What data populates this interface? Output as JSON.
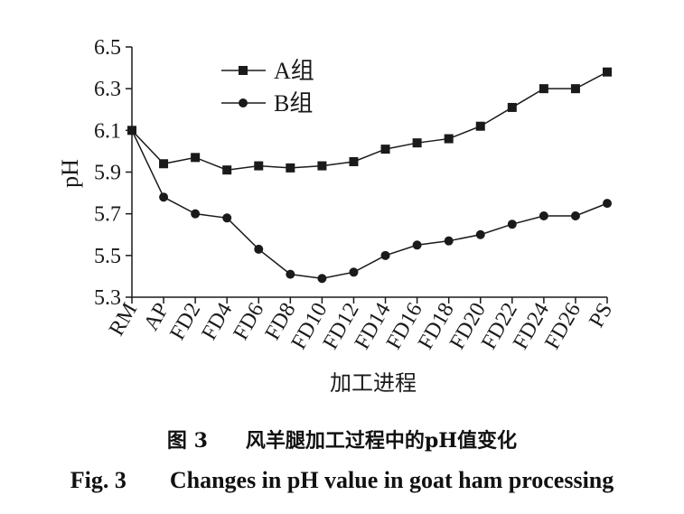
{
  "chart_data": {
    "type": "line",
    "categories": [
      "RM",
      "AP",
      "FD2",
      "FD4",
      "FD6",
      "FD8",
      "FD10",
      "FD12",
      "FD14",
      "FD16",
      "FD18",
      "FD20",
      "FD22",
      "FD24",
      "FD26",
      "PS"
    ],
    "series": [
      {
        "name": "A组",
        "marker": "square",
        "values": [
          6.1,
          5.94,
          5.97,
          5.91,
          5.93,
          5.92,
          5.93,
          5.95,
          6.01,
          6.04,
          6.06,
          6.12,
          6.21,
          6.3,
          6.3,
          6.38
        ]
      },
      {
        "name": "B组",
        "marker": "circle",
        "values": [
          6.1,
          5.78,
          5.7,
          5.68,
          5.53,
          5.41,
          5.39,
          5.42,
          5.5,
          5.55,
          5.57,
          5.6,
          5.65,
          5.69,
          5.69,
          5.75
        ]
      }
    ],
    "xlabel": "加工进程",
    "ylabel": "pH",
    "ylim": [
      5.3,
      6.5
    ],
    "yticks": [
      "5.3",
      "5.5",
      "5.7",
      "5.9",
      "6.1",
      "6.3",
      "6.5"
    ],
    "legend": "top-left",
    "grid": false,
    "line_color": "#1a1a1a"
  },
  "caption": {
    "cn_fig": "图 3",
    "cn_title": "风羊腿加工过程中的pH值变化",
    "en_fig": "Fig. 3",
    "en_title": "Changes in pH value in goat ham processing"
  }
}
